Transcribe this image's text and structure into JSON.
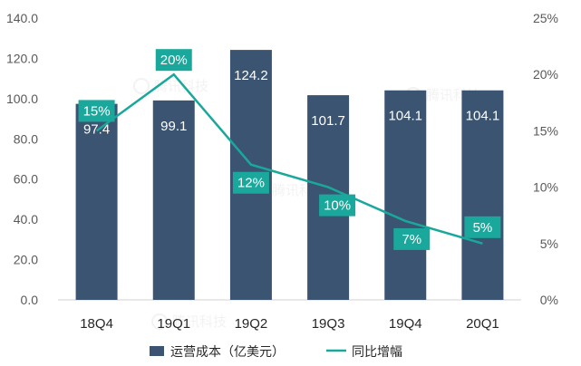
{
  "chart_data": {
    "type": "bar",
    "categories": [
      "18Q4",
      "19Q1",
      "19Q2",
      "19Q3",
      "19Q4",
      "20Q1"
    ],
    "series": [
      {
        "name": "运营成本（亿美元）",
        "type": "bar",
        "axis": "left",
        "values": [
          97.4,
          99.1,
          124.2,
          101.7,
          104.1,
          104.1
        ],
        "labels": [
          "97.4",
          "99.1",
          "124.2",
          "101.7",
          "104.1",
          "104.1"
        ],
        "color": "#3b5471"
      },
      {
        "name": "同比增幅",
        "type": "line",
        "axis": "right",
        "values": [
          15,
          20,
          12,
          10,
          7,
          5
        ],
        "labels": [
          "15%",
          "20%",
          "12%",
          "10%",
          "7%",
          "5%"
        ],
        "color": "#19a89b"
      }
    ],
    "y_left": {
      "ylim": [
        0,
        140
      ],
      "ticks": [
        "0.0",
        "20.0",
        "40.0",
        "60.0",
        "80.0",
        "100.0",
        "120.0",
        "140.0"
      ]
    },
    "y_right": {
      "ylim": [
        0,
        25
      ],
      "ticks": [
        "0%",
        "5%",
        "10%",
        "15%",
        "20%",
        "25%"
      ]
    },
    "grid": false,
    "legend_position": "bottom",
    "watermark": "腾讯科技"
  }
}
